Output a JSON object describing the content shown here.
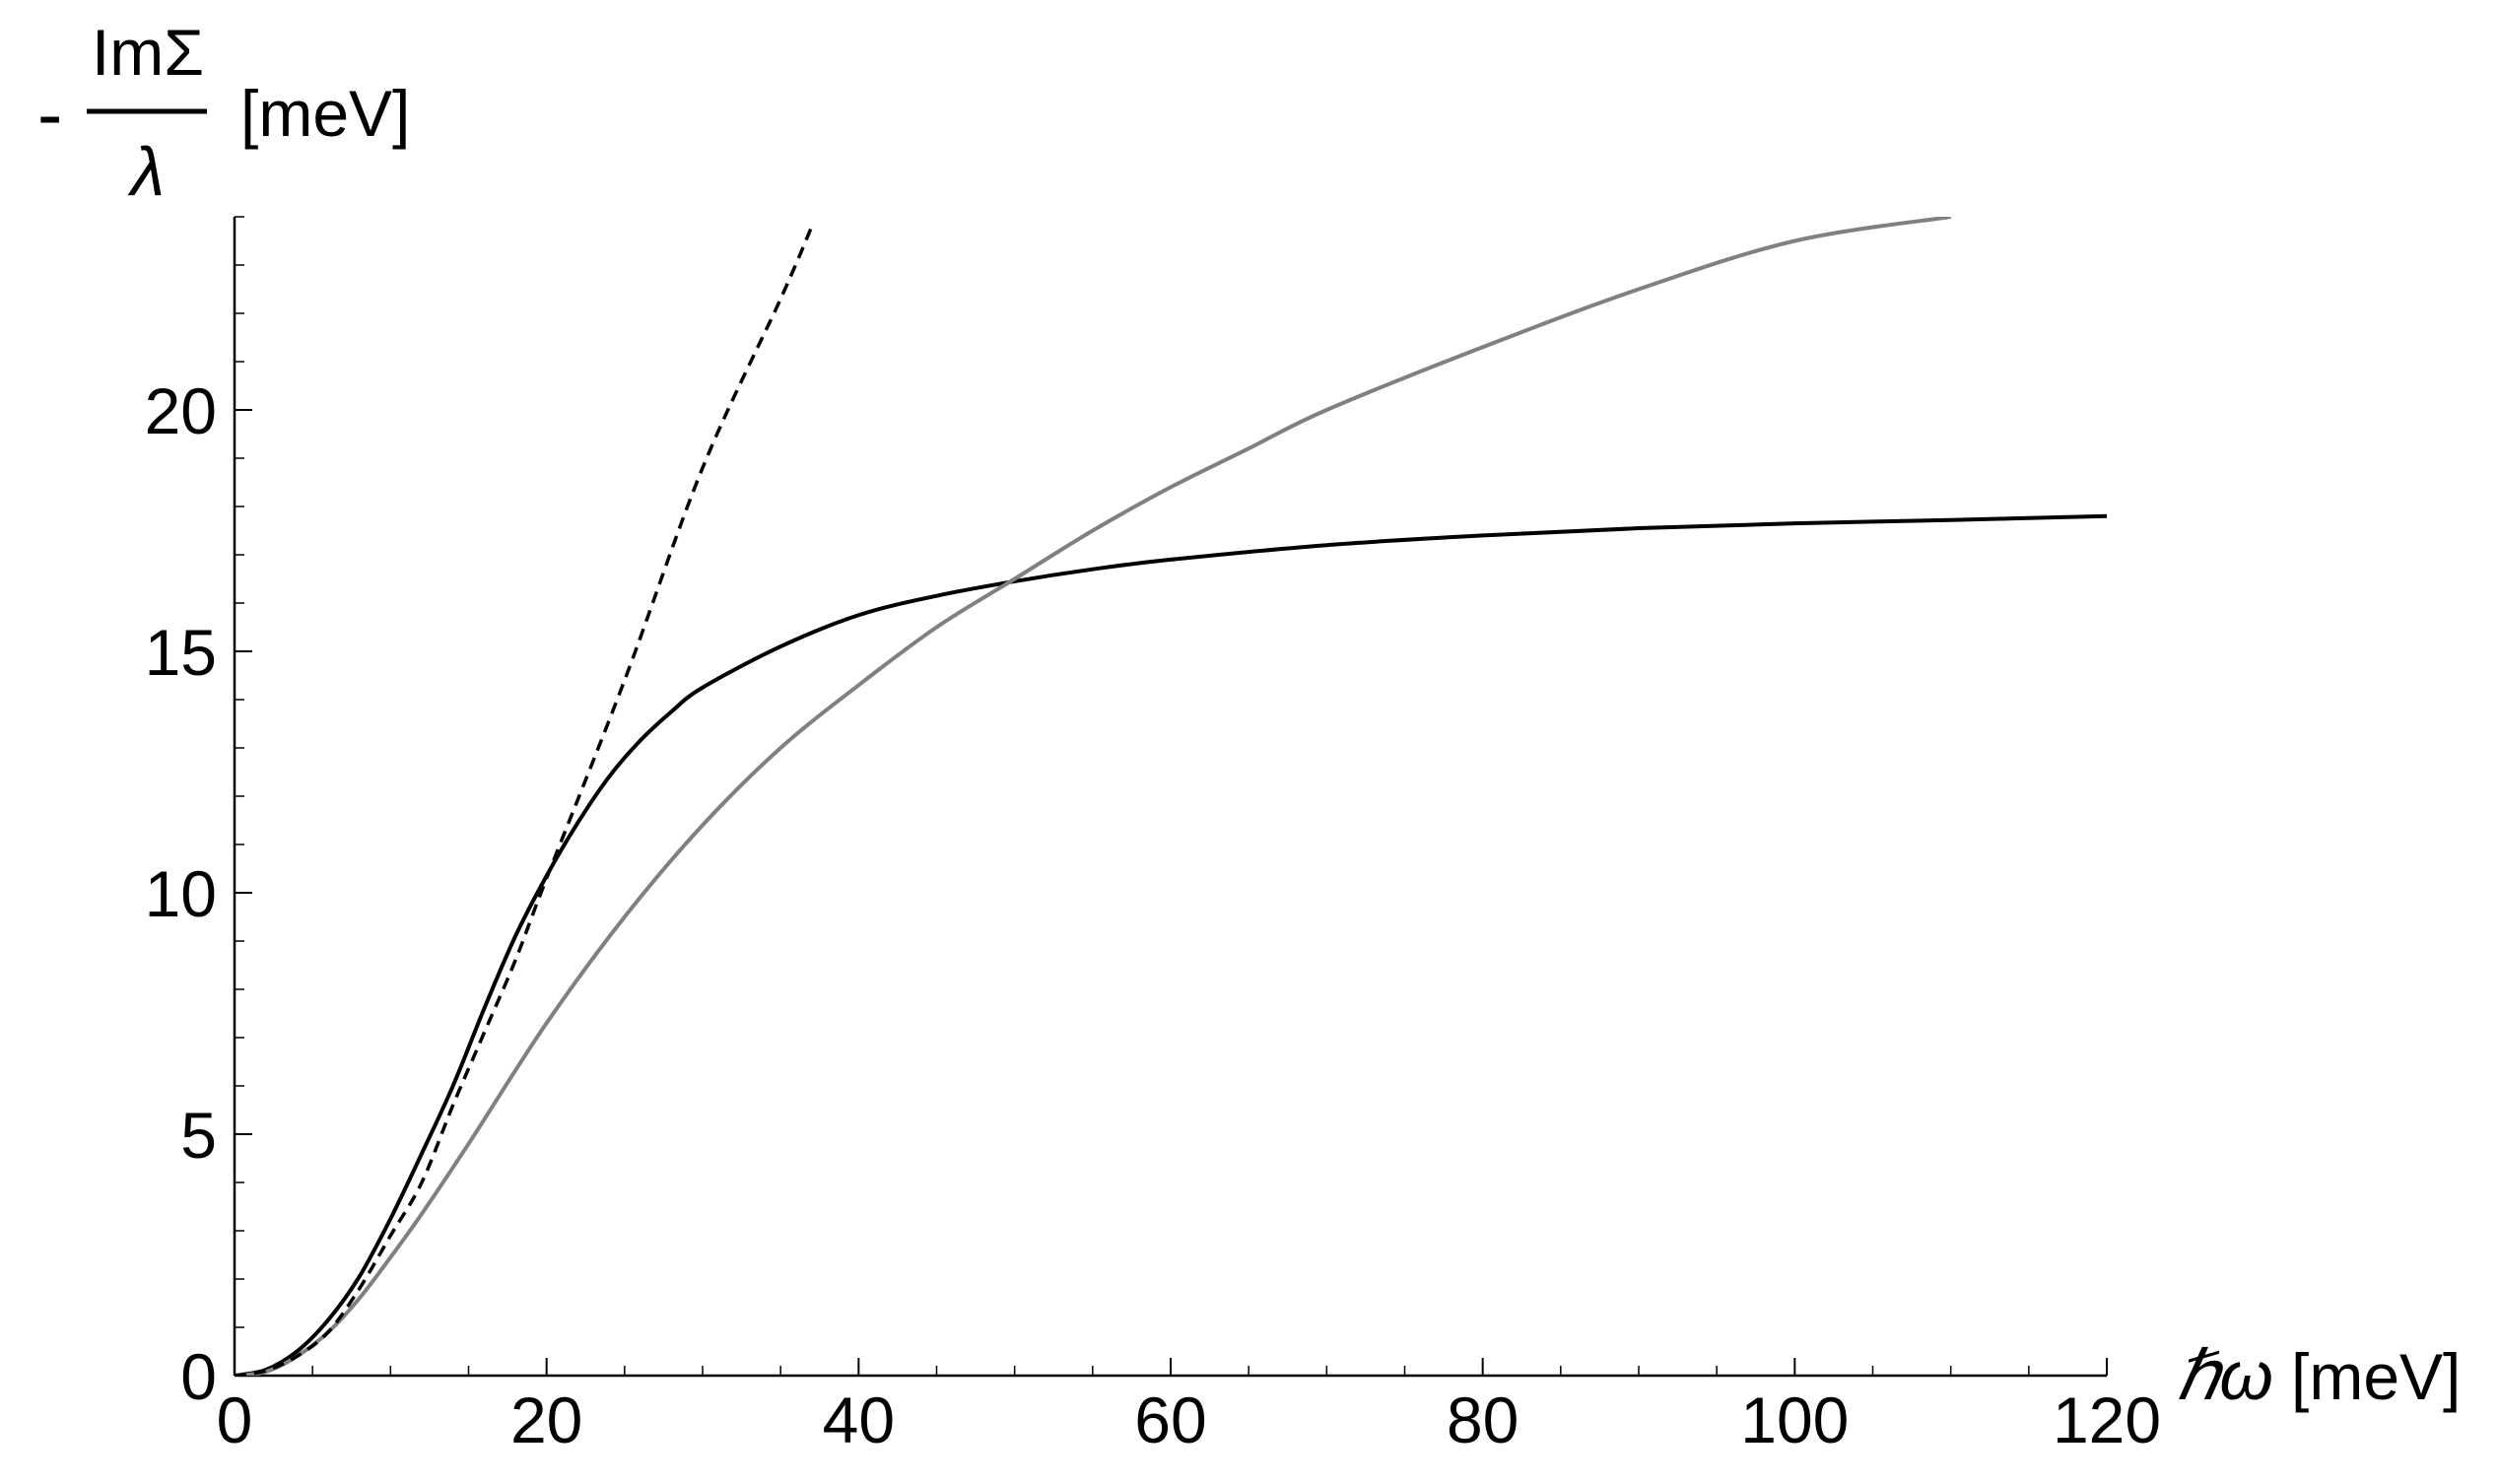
{
  "chart_data": {
    "type": "line",
    "title": "",
    "ylabel": {
      "prefix": "-",
      "numerator": "ImΣ",
      "denominator": "λ",
      "unit": "[meV]"
    },
    "xlabel": {
      "symbol": "ℏω",
      "unit": "[meV]"
    },
    "xlim": [
      0,
      120
    ],
    "ylim": [
      0,
      24
    ],
    "x_ticks": [
      0,
      20,
      40,
      60,
      80,
      100,
      120
    ],
    "y_ticks": [
      0,
      5,
      10,
      15,
      20
    ],
    "x_minor_step": 5,
    "y_minor_step": 1,
    "grid": false,
    "legend": "none",
    "series": [
      {
        "color": "#000000",
        "style": "solid",
        "x": [
          0,
          2,
          4,
          6,
          8,
          10,
          12,
          14,
          16,
          18,
          20,
          22,
          24,
          26,
          28,
          30,
          35,
          40,
          45,
          50,
          55,
          60,
          70,
          80,
          90,
          100,
          110,
          120
        ],
        "y": [
          0,
          0.12,
          0.5,
          1.15,
          2.05,
          3.25,
          4.6,
          6.0,
          7.6,
          9.1,
          10.35,
          11.45,
          12.4,
          13.15,
          13.75,
          14.25,
          15.1,
          15.75,
          16.15,
          16.45,
          16.7,
          16.9,
          17.2,
          17.4,
          17.55,
          17.65,
          17.72,
          17.8
        ]
      },
      {
        "color": "#808080",
        "style": "solid",
        "x": [
          0,
          2,
          4,
          6,
          8,
          10,
          12,
          15,
          20,
          25,
          30,
          35,
          40,
          45,
          50,
          55,
          60,
          65,
          70,
          80,
          90,
          100,
          110
        ],
        "y": [
          0,
          0.08,
          0.4,
          0.9,
          1.6,
          2.45,
          3.35,
          4.8,
          7.3,
          9.5,
          11.4,
          13.0,
          14.3,
          15.5,
          16.5,
          17.5,
          18.4,
          19.2,
          20.0,
          21.3,
          22.5,
          23.5,
          24.0
        ]
      },
      {
        "color": "#000000",
        "style": "dashed",
        "x": [
          0,
          2,
          4,
          6,
          8,
          10,
          12,
          14,
          16,
          18,
          20,
          25,
          30,
          35,
          37
        ],
        "y": [
          0,
          0.1,
          0.4,
          0.9,
          1.8,
          2.9,
          4.0,
          5.6,
          7.1,
          8.6,
          10.3,
          14.4,
          18.8,
          22.3,
          23.8
        ]
      }
    ]
  }
}
